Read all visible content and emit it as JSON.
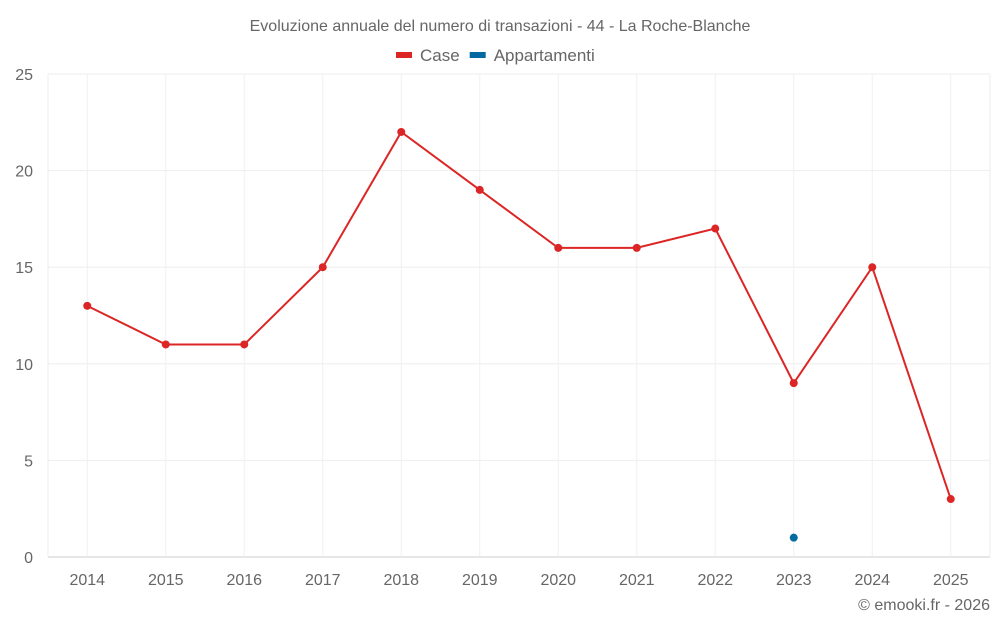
{
  "chart_data": {
    "type": "line",
    "title": "Evoluzione annuale del numero di transazioni - 44 - La Roche-Blanche",
    "categories": [
      "2014",
      "2015",
      "2016",
      "2017",
      "2018",
      "2019",
      "2020",
      "2021",
      "2022",
      "2023",
      "2024",
      "2025"
    ],
    "series": [
      {
        "name": "Case",
        "color": "#dc2626",
        "values": [
          13,
          11,
          11,
          15,
          22,
          19,
          16,
          16,
          17,
          9,
          15,
          3
        ]
      },
      {
        "name": "Appartamenti",
        "color": "#0369a1",
        "values": [
          null,
          null,
          null,
          null,
          null,
          null,
          null,
          null,
          null,
          1,
          null,
          null
        ]
      }
    ],
    "ylim": [
      0,
      25
    ],
    "yticks": [
      "0",
      "5",
      "10",
      "15",
      "20",
      "25"
    ],
    "grid": true,
    "legend": "top-center"
  },
  "credit": "© emooki.fr - 2026"
}
